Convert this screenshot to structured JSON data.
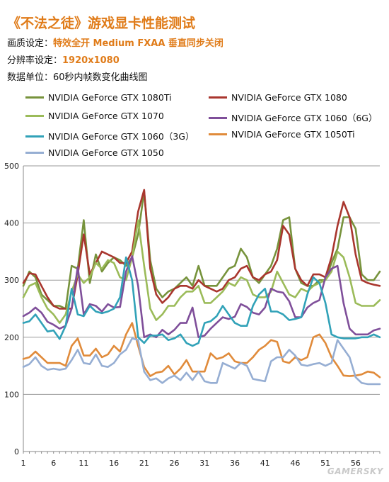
{
  "header": {
    "title": "《不法之徒》游戏显卡性能测试",
    "quality_label": "画质设定：",
    "quality_value": "特效全开  Medium  FXAA  垂直同步关闭",
    "resolution_label": "分辨率设定：",
    "resolution_value": "1920x1080",
    "unit_label": "数据单位：60秒内帧数变化曲线图"
  },
  "watermark": "GAMERSKY",
  "chart_data": {
    "type": "line",
    "title": "",
    "xlabel": "",
    "ylabel": "",
    "ylim": [
      0,
      500
    ],
    "yticks": [
      0,
      100,
      200,
      300,
      400,
      500
    ],
    "xlim": [
      1,
      60
    ],
    "xticks": [
      1,
      6,
      11,
      16,
      21,
      26,
      31,
      36,
      41,
      46,
      51,
      56
    ],
    "grid": "horizontal",
    "legend": "top",
    "x": [
      1,
      2,
      3,
      4,
      5,
      6,
      7,
      8,
      9,
      10,
      11,
      12,
      13,
      14,
      15,
      16,
      17,
      18,
      19,
      20,
      21,
      22,
      23,
      24,
      25,
      26,
      27,
      28,
      29,
      30,
      31,
      32,
      33,
      34,
      35,
      36,
      37,
      38,
      39,
      40,
      41,
      42,
      43,
      44,
      45,
      46,
      47,
      48,
      49,
      50,
      51,
      52,
      53,
      54,
      55,
      56,
      57,
      58,
      59,
      60
    ],
    "series": [
      {
        "name": "NVIDIA GeForce GTX 1080Ti",
        "color": "#77933c",
        "values": [
          290,
          315,
          305,
          275,
          265,
          255,
          255,
          250,
          325,
          320,
          405,
          295,
          345,
          315,
          330,
          340,
          335,
          325,
          340,
          380,
          455,
          335,
          285,
          270,
          280,
          285,
          295,
          305,
          290,
          325,
          290,
          290,
          290,
          305,
          320,
          325,
          355,
          340,
          305,
          295,
          310,
          325,
          355,
          405,
          410,
          320,
          295,
          290,
          290,
          300,
          300,
          330,
          355,
          410,
          410,
          390,
          310,
          300,
          300,
          315
        ]
      },
      {
        "name": "NVIDIA GeForce GTX 1080",
        "color": "#a9362e",
        "values": [
          295,
          312,
          310,
          290,
          270,
          255,
          250,
          250,
          250,
          310,
          380,
          310,
          330,
          350,
          345,
          340,
          330,
          330,
          350,
          420,
          458,
          320,
          275,
          260,
          270,
          285,
          290,
          290,
          285,
          300,
          290,
          285,
          280,
          285,
          300,
          305,
          320,
          325,
          305,
          300,
          310,
          315,
          335,
          395,
          380,
          320,
          300,
          290,
          310,
          310,
          305,
          340,
          395,
          437,
          410,
          345,
          300,
          295,
          292,
          290
        ]
      },
      {
        "name": "NVIDIA GeForce GTX 1070",
        "color": "#9bbb59",
        "values": [
          270,
          290,
          295,
          270,
          250,
          240,
          225,
          240,
          280,
          310,
          295,
          305,
          330,
          320,
          335,
          330,
          305,
          300,
          340,
          405,
          325,
          250,
          230,
          240,
          255,
          255,
          270,
          280,
          280,
          290,
          260,
          260,
          270,
          280,
          295,
          290,
          305,
          300,
          275,
          270,
          270,
          280,
          315,
          295,
          275,
          270,
          285,
          280,
          290,
          295,
          300,
          315,
          350,
          340,
          305,
          260,
          255,
          255,
          255,
          265
        ]
      },
      {
        "name": "NVIDIA GeForce GTX 1060（6G）",
        "color": "#7f4f9a",
        "values": [
          237,
          243,
          252,
          243,
          227,
          222,
          215,
          220,
          250,
          323,
          240,
          258,
          255,
          245,
          258,
          252,
          253,
          315,
          342,
          290,
          200,
          205,
          200,
          213,
          205,
          213,
          225,
          225,
          252,
          200,
          203,
          215,
          225,
          235,
          232,
          236,
          258,
          253,
          243,
          240,
          252,
          285,
          280,
          278,
          263,
          235,
          235,
          252,
          260,
          265,
          305,
          320,
          325,
          260,
          215,
          205,
          205,
          205,
          212,
          215
        ]
      },
      {
        "name": "NVIDIA GeForce GTX 1060（3G）",
        "color": "#31a2b8",
        "values": [
          225,
          228,
          240,
          225,
          210,
          212,
          197,
          220,
          285,
          240,
          237,
          255,
          245,
          242,
          245,
          250,
          270,
          340,
          300,
          200,
          190,
          203,
          203,
          205,
          195,
          198,
          205,
          190,
          185,
          190,
          225,
          228,
          237,
          255,
          240,
          225,
          220,
          220,
          255,
          275,
          285,
          245,
          245,
          240,
          230,
          232,
          235,
          275,
          305,
          295,
          260,
          205,
          200,
          198,
          198,
          198,
          200,
          200,
          205,
          200
        ]
      },
      {
        "name": "NVIDIA GeForce GTX 1050Ti",
        "color": "#e08b3b",
        "values": [
          162,
          165,
          175,
          165,
          155,
          155,
          155,
          150,
          185,
          198,
          168,
          168,
          180,
          165,
          170,
          185,
          175,
          205,
          225,
          185,
          148,
          132,
          138,
          140,
          150,
          135,
          145,
          160,
          140,
          140,
          140,
          172,
          162,
          165,
          172,
          158,
          155,
          155,
          165,
          178,
          185,
          195,
          192,
          158,
          155,
          165,
          160,
          165,
          200,
          205,
          190,
          165,
          150,
          133,
          132,
          133,
          135,
          140,
          138,
          130
        ]
      },
      {
        "name": "NVIDIA GeForce GTX 1050",
        "color": "#96aed3",
        "values": [
          148,
          153,
          165,
          150,
          143,
          145,
          143,
          145,
          160,
          178,
          155,
          153,
          170,
          150,
          148,
          155,
          170,
          178,
          198,
          195,
          140,
          125,
          128,
          120,
          128,
          133,
          125,
          138,
          125,
          140,
          123,
          120,
          120,
          155,
          150,
          145,
          155,
          150,
          127,
          125,
          123,
          158,
          165,
          165,
          178,
          168,
          152,
          150,
          153,
          155,
          150,
          155,
          195,
          180,
          165,
          130,
          120,
          118,
          118,
          118
        ]
      }
    ]
  }
}
